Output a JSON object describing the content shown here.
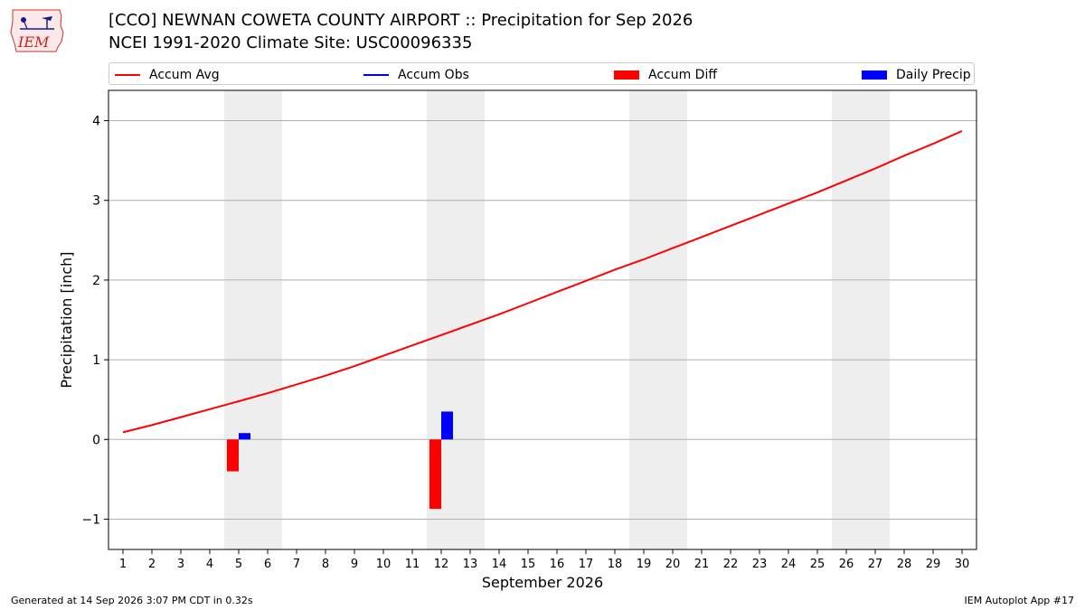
{
  "header": {
    "logo_text": "IEM",
    "title_line1": "[CCO] NEWNAN COWETA COUNTY AIRPORT :: Precipitation for Sep 2026",
    "title_line2": "NCEI 1991-2020 Climate Site: USC00096335"
  },
  "footer": {
    "generated": "Generated at 14 Sep 2026 3:07 PM CDT in 0.32s",
    "app": "IEM Autoplot App #17"
  },
  "colors": {
    "accum_avg": "#ff0000",
    "accum_obs": "#0000ff",
    "accum_diff": "#ff0000",
    "daily_precip": "#0000ff",
    "weekend_shade": "#eeeeee",
    "grid": "#b0b0b0"
  },
  "chart_data": {
    "type": "line",
    "title": "[CCO] NEWNAN COWETA COUNTY AIRPORT :: Precipitation for Sep 2026",
    "subtitle": "NCEI 1991-2020 Climate Site: USC00096335",
    "xlabel": "September 2026",
    "ylabel": "Precipitation [inch]",
    "xlim": [
      0.5,
      30.5
    ],
    "ylim": [
      -1.38,
      4.38
    ],
    "yticks": [
      -1,
      0,
      1,
      2,
      3,
      4
    ],
    "ytick_labels": [
      "−1",
      "0",
      "1",
      "2",
      "3",
      "4"
    ],
    "xticks": [
      1,
      2,
      3,
      4,
      5,
      6,
      7,
      8,
      9,
      10,
      11,
      12,
      13,
      14,
      15,
      16,
      17,
      18,
      19,
      20,
      21,
      22,
      23,
      24,
      25,
      26,
      27,
      28,
      29,
      30
    ],
    "grid": "y",
    "legend_position": "top",
    "legend": [
      "Accum Avg",
      "Accum Obs",
      "Accum Diff",
      "Daily Precip"
    ],
    "weekend_bands": [
      [
        4.5,
        6.5
      ],
      [
        11.5,
        13.5
      ],
      [
        18.5,
        20.5
      ],
      [
        25.5,
        27.5
      ]
    ],
    "series": [
      {
        "name": "Accum Avg",
        "kind": "line",
        "x": [
          1,
          2,
          3,
          4,
          5,
          6,
          7,
          8,
          9,
          10,
          11,
          12,
          13,
          14,
          15,
          16,
          17,
          18,
          19,
          20,
          21,
          22,
          23,
          24,
          25,
          26,
          27,
          28,
          29,
          30
        ],
        "values": [
          0.09,
          0.18,
          0.28,
          0.38,
          0.48,
          0.58,
          0.69,
          0.8,
          0.92,
          1.05,
          1.18,
          1.31,
          1.44,
          1.57,
          1.71,
          1.85,
          1.99,
          2.13,
          2.26,
          2.4,
          2.54,
          2.68,
          2.82,
          2.96,
          3.1,
          3.25,
          3.4,
          3.56,
          3.71,
          3.87
        ]
      },
      {
        "name": "Accum Obs",
        "kind": "line",
        "x": [],
        "values": []
      },
      {
        "name": "Accum Diff",
        "kind": "bar",
        "x": [
          5,
          12
        ],
        "values": [
          -0.4,
          -0.87
        ]
      },
      {
        "name": "Daily Precip",
        "kind": "bar",
        "x": [
          5,
          12
        ],
        "values": [
          0.08,
          0.35
        ]
      }
    ]
  }
}
